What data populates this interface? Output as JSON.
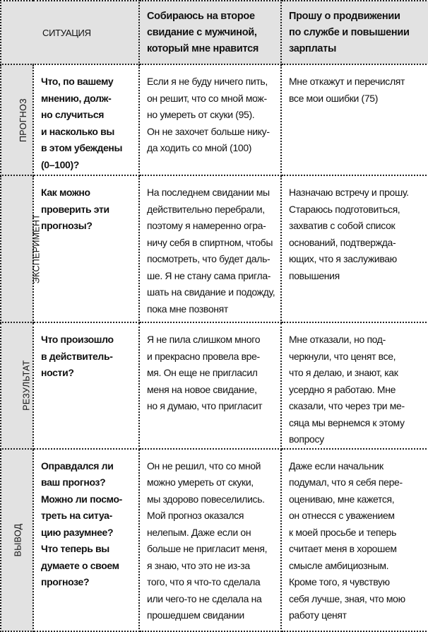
{
  "header": {
    "situation": "СИТУАЦИЯ",
    "col1": "Собираюсь на второе\nсвидание с мужчиной,\nкоторый мне нравится",
    "col2": "Прошу о продвижении\nпо службе и повышении\nзарплаты"
  },
  "rows": [
    {
      "label": "ПРОГНОЗ",
      "question": "Что, по вашему\nмнению, долж-\nно случиться\nи насколько вы\nв этом убеждены\n(0–100)?",
      "col1": "Если я не буду ничего пить,\nон решит, что со мной мож-\nно умереть от скуки (95).\nОн не захочет больше нику-\nда ходить со мной (100)",
      "col2": "Мне откажут и перечислят\nвсе мои ошибки (75)"
    },
    {
      "label": "ЭКСПЕРИМЕНТ",
      "question": "Как можно\nпроверить эти\nпрогнозы?",
      "col1": "На последнем свидании мы\nдействительно перебрали,\nпоэтому я намеренно огра-\nничу себя в спиртном, чтобы\nпосмотреть, что будет даль-\nше. Я не стану сама пригла-\nшать на свидание и подожду,\nпока мне позвонят",
      "col2": "Назначаю встречу и прошу.\nСтараюсь подготовиться,\nзахватив с собой список\nоснований, подтвержда-\nющих, что я заслуживаю\nповышения"
    },
    {
      "label": "РЕЗУЛЬТАТ",
      "question": "Что произошло\nв действитель-\nности?",
      "col1": "Я не пила слишком много\nи прекрасно провела вре-\nмя. Он еще не пригласил\nменя на новое свидание,\nно я думаю, что пригласит",
      "col2": "Мне отказали, но под-\nчеркнули, что ценят все,\nчто я делаю, и знают, как\nусердно я работаю. Мне\nсказали, что через три ме-\nсяца мы вернемся к этому\nвопросу"
    },
    {
      "label": "ВЫВОД",
      "question": "Оправдался ли\nваш прогноз?\nМожно ли посмо-\nтреть на ситуа-\nцию разумнее?\nЧто теперь вы\nдумаете о своем\nпрогнозе?",
      "col1": "Он не решил, что со мной\nможно умереть от скуки,\nмы здорово повеселились.\nМой прогноз оказался\nнелепым. Даже если он\nбольше не пригласит меня,\nя знаю, что это не из-за\nтого, что я что-то сделала\nили чего-то не сделала на\nпрошедшем свидании",
      "col2": "Даже если начальник\nподумал, что я себя пере-\nоцениваю, мне кажется,\nон отнесся с уважением\nк моей просьбе и теперь\nсчитает меня в хорошем\nсмысле амбициозным.\nКроме того, я чувствую\nсебя лучше, зная, что мою\nработу ценят"
    }
  ]
}
